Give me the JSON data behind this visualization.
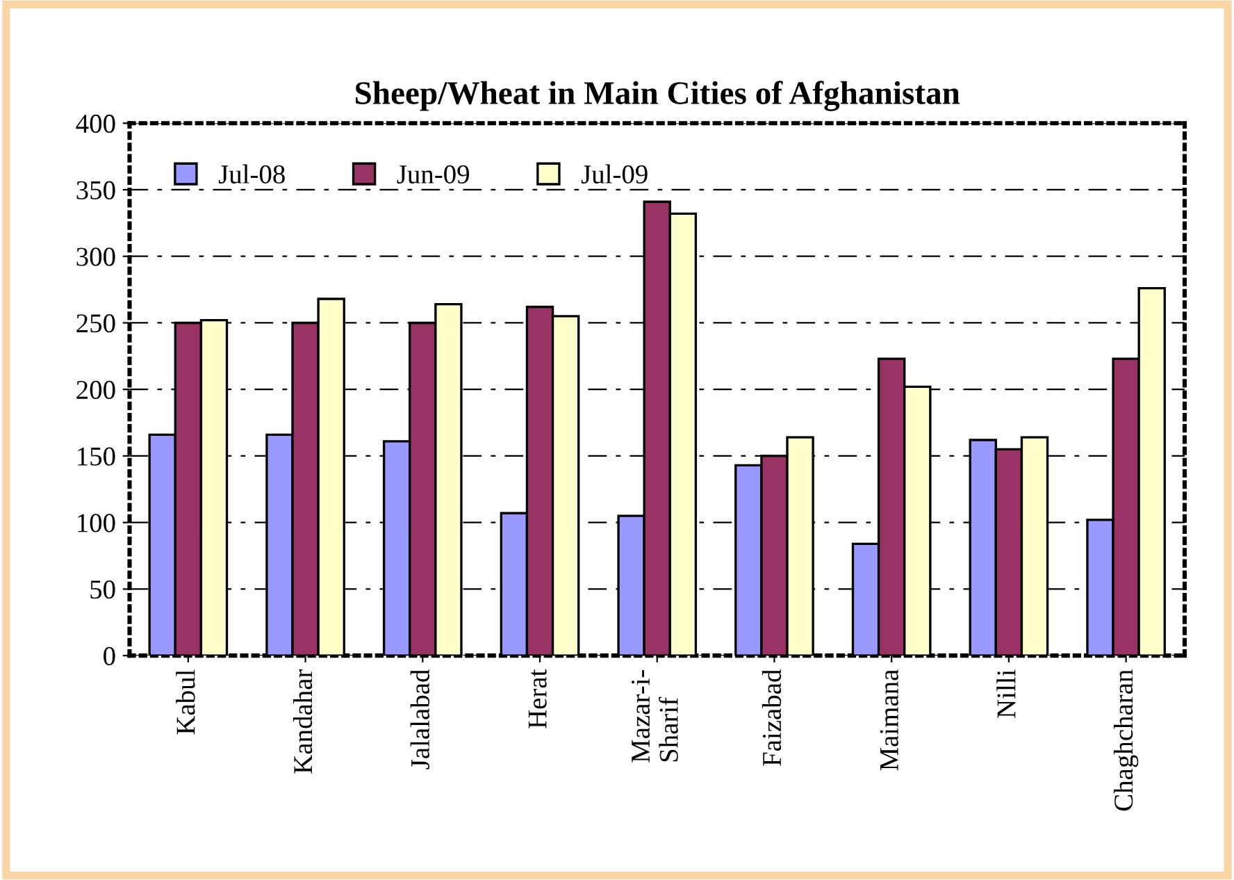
{
  "chart_data": {
    "type": "bar",
    "title": "Sheep/Wheat in Main Cities of Afghanistan",
    "categories": [
      "Kabul",
      "Kandahar",
      "Jalalabad",
      "Herat",
      "Mazar-i-\nSharif",
      "Faizabad",
      "Maimana",
      "Nilli",
      "Chaghcharan"
    ],
    "series": [
      {
        "name": "Jul-08",
        "color": "#9999ff",
        "values": [
          166,
          166,
          161,
          107,
          105,
          143,
          84,
          162,
          102
        ]
      },
      {
        "name": "Jun-09",
        "color": "#993366",
        "values": [
          250,
          250,
          250,
          262,
          341,
          150,
          223,
          155,
          223
        ]
      },
      {
        "name": "Jul-09",
        "color": "#ffffcc",
        "values": [
          252,
          268,
          264,
          255,
          332,
          164,
          202,
          164,
          276
        ]
      }
    ],
    "ylim": [
      0,
      400
    ],
    "yticks": [
      0,
      50,
      100,
      150,
      200,
      250,
      300,
      350,
      400
    ],
    "grid": "y",
    "legend": "top left"
  }
}
